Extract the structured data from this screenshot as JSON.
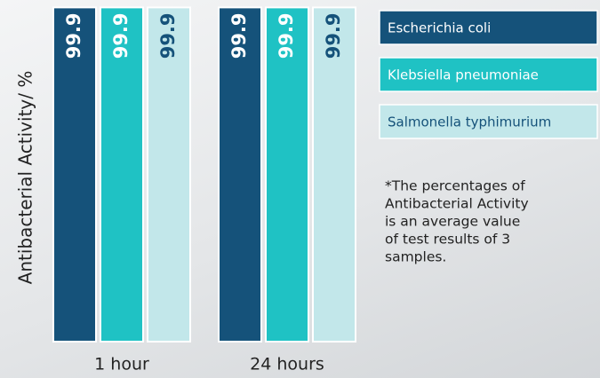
{
  "chart_data": {
    "type": "bar",
    "ylabel": "Antibacterial Activity/ %",
    "categories": [
      "1 hour",
      "24 hours"
    ],
    "series": [
      {
        "name": "Escherichia coli",
        "color": "#15527a",
        "values": [
          99.9,
          99.9
        ]
      },
      {
        "name": "Klebsiella pneumoniae",
        "color": "#1fc2c4",
        "values": [
          99.9,
          99.9
        ]
      },
      {
        "name": "Salmonella typhimurium",
        "color": "#c2e7ea",
        "values": [
          99.9,
          99.9
        ]
      }
    ],
    "ylim": [
      0,
      100
    ],
    "note": [
      "*The percentages of",
      "Antibacterial Activity",
      "is an average value",
      "of test results of 3",
      "samples."
    ]
  }
}
